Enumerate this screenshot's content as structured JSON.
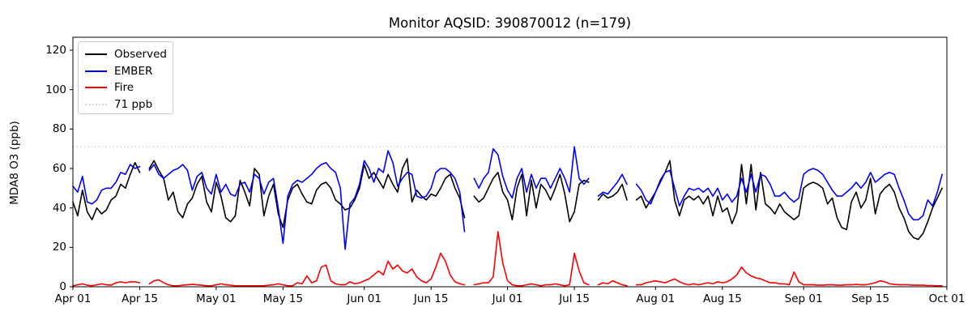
{
  "chart_data": {
    "type": "line",
    "title": "Monitor AQSID: 390870012 (n=179)",
    "xlabel": "",
    "ylabel": "MDA8 O3 (ppb)",
    "ylim": [
      0,
      126
    ],
    "yticks": [
      0,
      20,
      40,
      60,
      80,
      100,
      120
    ],
    "grid": false,
    "legend_position": "upper left",
    "x_unit": "days since Apr 01 (daily values, Apr 01 - Sep 30)",
    "n_days": 183,
    "xtick_labels": [
      "Apr 01",
      "Apr 15",
      "May 01",
      "May 15",
      "Jun 01",
      "Jun 15",
      "Jul 01",
      "Jul 15",
      "Aug 01",
      "Aug 15",
      "Sep 01",
      "Sep 15",
      "Oct 01"
    ],
    "xtick_day_index": [
      0,
      14,
      30,
      44,
      61,
      75,
      91,
      105,
      122,
      136,
      153,
      167,
      183
    ],
    "threshold": {
      "value": 71,
      "label": "71 ppb",
      "color": "#d3d3d3",
      "style": "dotted"
    },
    "series": [
      {
        "name": "Observed",
        "color": "#000000",
        "values": [
          43,
          36,
          49,
          38,
          34,
          40,
          37,
          39,
          44,
          46,
          52,
          50,
          57,
          63,
          58,
          null,
          60,
          64,
          59,
          55,
          44,
          48,
          38,
          35,
          42,
          45,
          52,
          56,
          43,
          38,
          53,
          46,
          35,
          33,
          36,
          54,
          48,
          41,
          60,
          57,
          36,
          46,
          52,
          37,
          30,
          44,
          50,
          52,
          47,
          43,
          42,
          49,
          52,
          53,
          50,
          44,
          42,
          39,
          40,
          44,
          50,
          62,
          55,
          58,
          54,
          50,
          57,
          52,
          48,
          60,
          65,
          43,
          49,
          46,
          44,
          47,
          46,
          50,
          55,
          57,
          50,
          45,
          35,
          null,
          46,
          43,
          45,
          50,
          55,
          58,
          48,
          44,
          34,
          50,
          57,
          36,
          54,
          40,
          52,
          49,
          44,
          50,
          57,
          47,
          33,
          38,
          52,
          54,
          53,
          null,
          44,
          47,
          45,
          46,
          48,
          52,
          44,
          null,
          44,
          46,
          40,
          44,
          48,
          54,
          58,
          64,
          44,
          36,
          44,
          46,
          44,
          46,
          42,
          46,
          36,
          46,
          38,
          40,
          32,
          38,
          62,
          42,
          62,
          39,
          58,
          42,
          40,
          37,
          42,
          38,
          36,
          34,
          36,
          50,
          52,
          53,
          52,
          50,
          42,
          45,
          35,
          30,
          29,
          43,
          48,
          40,
          44,
          55,
          37,
          47,
          50,
          52,
          48,
          40,
          35,
          28,
          25,
          24,
          27,
          33,
          40,
          45,
          50
        ]
      },
      {
        "name": "EMBER",
        "color": "#0000ff",
        "values": [
          51,
          48,
          56,
          43,
          42,
          44,
          49,
          50,
          50,
          53,
          58,
          57,
          62,
          60,
          61,
          null,
          59,
          62,
          57,
          55,
          57,
          59,
          60,
          62,
          59,
          49,
          56,
          58,
          50,
          47,
          57,
          48,
          52,
          47,
          46,
          52,
          53,
          48,
          57,
          55,
          47,
          53,
          55,
          40,
          22,
          46,
          52,
          54,
          53,
          55,
          57,
          60,
          62,
          63,
          60,
          58,
          50,
          19,
          42,
          45,
          52,
          64,
          60,
          53,
          60,
          58,
          69,
          63,
          51,
          55,
          58,
          57,
          46,
          45,
          46,
          50,
          58,
          60,
          60,
          58,
          55,
          48,
          28,
          null,
          55,
          50,
          55,
          58,
          70,
          67,
          56,
          49,
          45,
          55,
          60,
          48,
          57,
          50,
          55,
          55,
          50,
          55,
          60,
          55,
          48,
          71,
          55,
          52,
          55,
          null,
          46,
          48,
          47,
          50,
          53,
          57,
          52,
          null,
          52,
          49,
          44,
          42,
          48,
          53,
          58,
          59,
          50,
          41,
          46,
          50,
          49,
          50,
          48,
          50,
          46,
          50,
          44,
          47,
          43,
          46,
          55,
          48,
          57,
          48,
          57,
          56,
          52,
          46,
          46,
          48,
          45,
          43,
          45,
          57,
          59,
          60,
          59,
          57,
          53,
          49,
          46,
          46,
          48,
          50,
          53,
          50,
          53,
          58,
          53,
          55,
          57,
          58,
          57,
          50,
          44,
          37,
          34,
          34,
          36,
          44,
          41,
          48,
          57
        ]
      },
      {
        "name": "Fire",
        "color": "#ff0000",
        "values": [
          0.5,
          1,
          1.5,
          0.8,
          0.5,
          1,
          1.5,
          1,
          0.8,
          2,
          2.5,
          2,
          2.5,
          2.5,
          2,
          null,
          1.5,
          3,
          3.5,
          2,
          1,
          0.5,
          0.5,
          0.8,
          1,
          1.2,
          1,
          0.8,
          0.5,
          0.5,
          1,
          1.5,
          1,
          0.8,
          0.5,
          0.5,
          0.5,
          0.5,
          0.5,
          0.5,
          0.5,
          0.8,
          1,
          1.5,
          1,
          0.5,
          0.5,
          2,
          1.5,
          5.5,
          2,
          3,
          10,
          11,
          3,
          1.5,
          1,
          1,
          2.5,
          1.5,
          2,
          3,
          4,
          6,
          8,
          6,
          13,
          9,
          11,
          8,
          7,
          9,
          5,
          3,
          2,
          4,
          10,
          17,
          13,
          6,
          2.5,
          1.5,
          1,
          null,
          1,
          1.5,
          2,
          2,
          5,
          28,
          12,
          3,
          1,
          0.5,
          0.5,
          1,
          1.5,
          1,
          0.5,
          1,
          1,
          1.5,
          1,
          0.5,
          1,
          17,
          8,
          2,
          1,
          null,
          1,
          2,
          1.5,
          3,
          2,
          1,
          0.5,
          null,
          1,
          1,
          2,
          2.5,
          3,
          2.5,
          2,
          3,
          4,
          2.5,
          1.5,
          1,
          1.5,
          1,
          1.5,
          2,
          1.5,
          2.5,
          2,
          2.5,
          4,
          6,
          10,
          7,
          5.5,
          4.5,
          4,
          3,
          2,
          2,
          1.5,
          1.5,
          1,
          7.5,
          2.5,
          1,
          1,
          1,
          0.8,
          0.8,
          1,
          1,
          0.8,
          0.8,
          1,
          1,
          1.2,
          1,
          1,
          1.5,
          2,
          3,
          2.5,
          1.5,
          1.2,
          1,
          1,
          1,
          0.8,
          0.8,
          0.8,
          0.6,
          0.6,
          0.5,
          0.5
        ]
      }
    ]
  }
}
